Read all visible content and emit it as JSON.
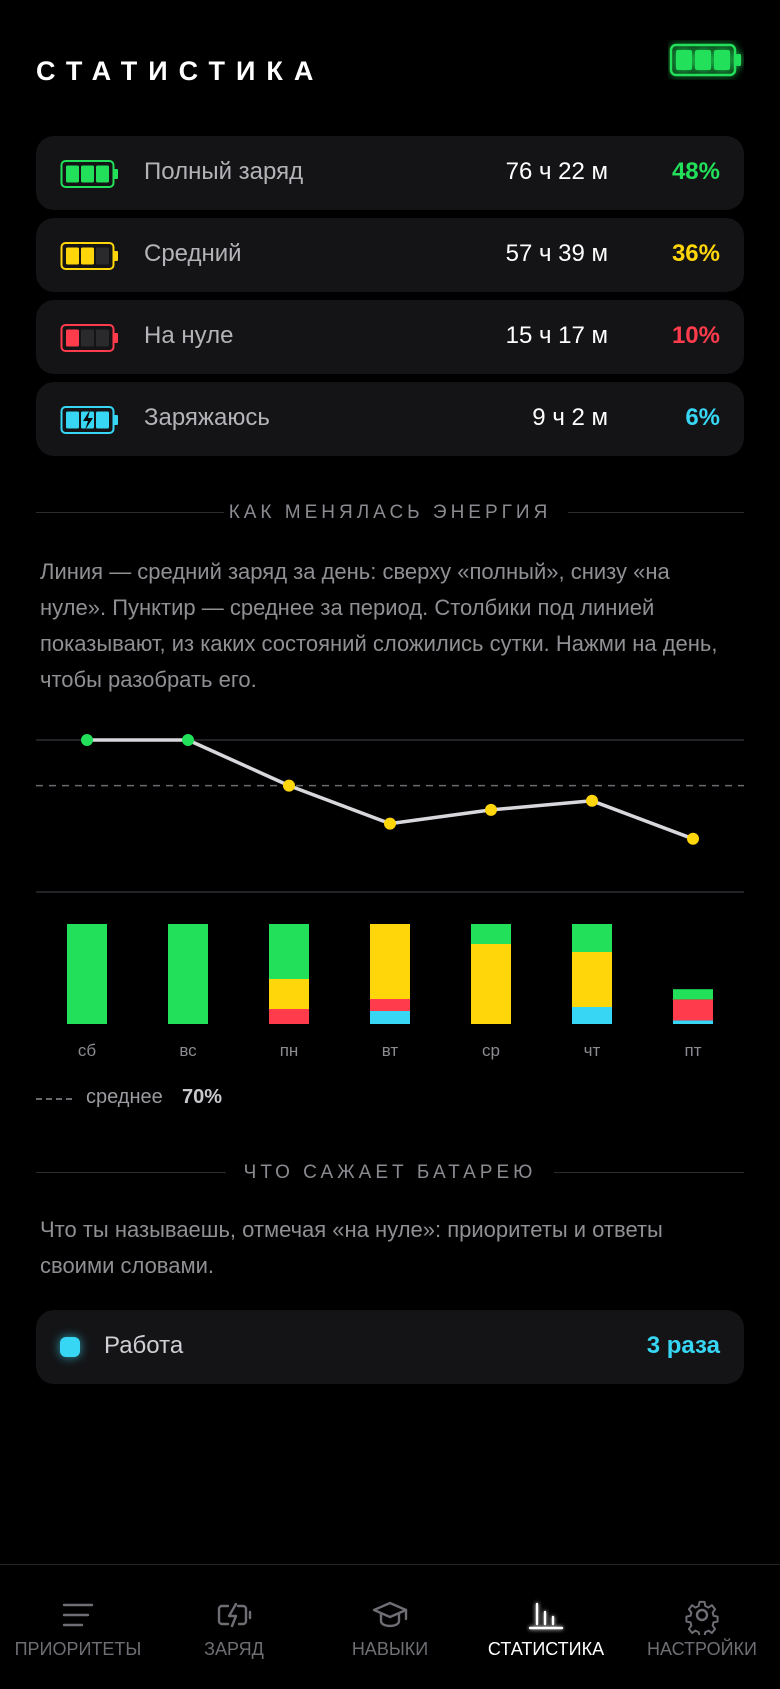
{
  "header": {
    "title": "СТАТИСТИКА"
  },
  "stats": [
    {
      "label": "Полный заряд",
      "duration": "76 ч 22 м",
      "percent": "48%",
      "state": "full",
      "color": "#22e05a"
    },
    {
      "label": "Средний",
      "duration": "57 ч 39 м",
      "percent": "36%",
      "state": "medium",
      "color": "#ffd60a"
    },
    {
      "label": "На нуле",
      "duration": "15 ч 17 м",
      "percent": "10%",
      "state": "empty",
      "color": "#ff3b4c"
    },
    {
      "label": "Заряжаюсь",
      "duration": "9 ч 2 м",
      "percent": "6%",
      "state": "charging",
      "color": "#37d6f5"
    }
  ],
  "energy_section": {
    "heading": "КАК МЕНЯЛАСЬ ЭНЕРГИЯ",
    "description": "Линия — средний заряд за день: сверху «полный», снизу «на нуле». Пунктир — среднее за период. Столбики под линией показывают, из каких состояний сложились сутки. Нажми на день, чтобы разобрать его.",
    "legend_label": "среднее",
    "legend_value": "70%"
  },
  "chart_data": {
    "type": "line+stacked-bar",
    "categories": [
      "сб",
      "вс",
      "пн",
      "вт",
      "ср",
      "чт",
      "пт"
    ],
    "line": {
      "values": [
        100,
        100,
        70,
        45,
        54,
        60,
        35
      ],
      "ylim": [
        0,
        100
      ],
      "average": 70
    },
    "bars": {
      "series": [
        {
          "name": "full",
          "color": "#22e05a",
          "values": [
            1.0,
            1.0,
            0.55,
            0.0,
            0.2,
            0.28,
            0.17
          ]
        },
        {
          "name": "medium",
          "color": "#ffd60a",
          "values": [
            0.0,
            0.0,
            0.3,
            0.75,
            0.8,
            0.55,
            0.0
          ]
        },
        {
          "name": "empty",
          "color": "#ff3b4c",
          "values": [
            0.0,
            0.0,
            0.15,
            0.12,
            0.0,
            0.0,
            0.35
          ]
        },
        {
          "name": "charging",
          "color": "#37d6f5",
          "values": [
            0.0,
            0.0,
            0.0,
            0.13,
            0.0,
            0.17,
            0.06
          ]
        }
      ],
      "day_fraction": [
        1.0,
        1.0,
        1.0,
        1.0,
        1.0,
        1.0,
        0.6
      ]
    },
    "line_point_colors": [
      "#22e05a",
      "#22e05a",
      "#ffd60a",
      "#ffd60a",
      "#ffd60a",
      "#ffd60a",
      "#ffd60a"
    ]
  },
  "drain_section": {
    "heading": "ЧТО САЖАЕТ БАТАРЕЮ",
    "description": "Что ты называешь, отмечая «на нуле»: приоритеты и ответы своими словами.",
    "items": [
      {
        "label": "Работа",
        "count": "3 раза",
        "color": "#37d6f5"
      }
    ]
  },
  "tabbar": {
    "tabs": [
      {
        "label": "ПРИОРИТЕТЫ",
        "icon": "list-icon",
        "active": false
      },
      {
        "label": "ЗАРЯД",
        "icon": "battery-charge-icon",
        "active": false
      },
      {
        "label": "НАВЫКИ",
        "icon": "graduation-cap-icon",
        "active": false
      },
      {
        "label": "СТАТИСТИКА",
        "icon": "bar-chart-icon",
        "active": true
      },
      {
        "label": "НАСТРОЙКИ",
        "icon": "gear-icon",
        "active": false
      }
    ]
  }
}
